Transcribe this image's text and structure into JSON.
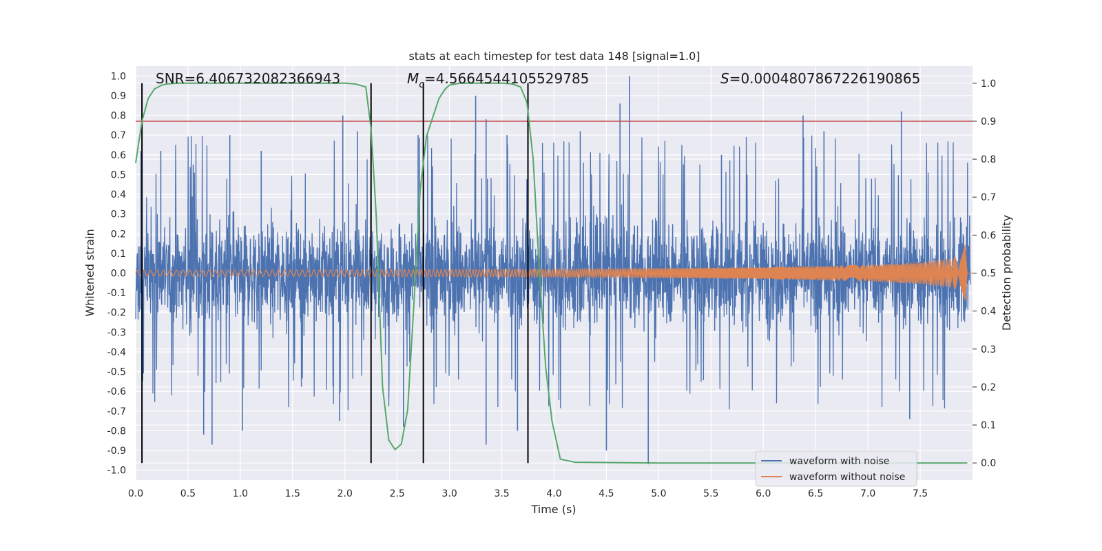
{
  "chart_data": {
    "type": "line",
    "title": "stats at each timestep for test data 148 [signal=1.0]",
    "xlabel": "Time (s)",
    "ylabel": "Whitened strain",
    "y2label": "Detection probability",
    "xlim": [
      0.0,
      8.0
    ],
    "ylim": [
      -1.05,
      1.05
    ],
    "y2lim": [
      -0.045,
      1.045
    ],
    "xticks": [
      "0.0",
      "0.5",
      "1.0",
      "1.5",
      "2.0",
      "2.5",
      "3.0",
      "3.5",
      "4.0",
      "4.5",
      "5.0",
      "5.5",
      "6.0",
      "6.5",
      "7.0",
      "7.5"
    ],
    "yticks": [
      "1.0",
      "0.9",
      "0.8",
      "0.7",
      "0.6",
      "0.5",
      "0.4",
      "0.3",
      "0.2",
      "0.1",
      "0.0",
      "-0.1",
      "-0.2",
      "-0.3",
      "-0.4",
      "-0.5",
      "-0.6",
      "-0.7",
      "-0.8",
      "-0.9",
      "-1.0"
    ],
    "y2ticks": [
      "1.0",
      "0.9",
      "0.8",
      "0.7",
      "0.6",
      "0.5",
      "0.4",
      "0.3",
      "0.2",
      "0.1",
      "0.0"
    ],
    "grid": true,
    "legend_position": "lower-right",
    "threshold": {
      "value": 0.9,
      "axis": "right",
      "color": "#c44e52"
    },
    "vertical_markers": [
      0.06,
      2.25,
      2.75,
      3.75
    ],
    "annotations": {
      "snr": "SNR=6.406732082366943",
      "mc_symbol": "M",
      "mc_sub": "c",
      "mc_value": "=4.5664544105529785",
      "s_symbol": "S",
      "s_value": "=0.0004807867226190865"
    },
    "series": [
      {
        "name": "waveform with noise",
        "color": "#4c72b0",
        "style": "noise",
        "typical_amplitude": 0.4,
        "spike_peaks": [
          {
            "x": 0.05,
            "y": 0.62
          },
          {
            "x": 0.24,
            "y": 0.62
          },
          {
            "x": 0.55,
            "y": 0.55
          },
          {
            "x": 0.9,
            "y": 0.7
          },
          {
            "x": 1.2,
            "y": 0.62
          },
          {
            "x": 1.98,
            "y": 0.8
          },
          {
            "x": 2.12,
            "y": 0.72
          },
          {
            "x": 2.7,
            "y": 0.7
          },
          {
            "x": 3.25,
            "y": 0.9
          },
          {
            "x": 3.35,
            "y": 0.78
          },
          {
            "x": 3.55,
            "y": 0.7
          },
          {
            "x": 4.25,
            "y": 0.72
          },
          {
            "x": 4.63,
            "y": 0.86
          },
          {
            "x": 4.72,
            "y": 1.0
          },
          {
            "x": 5.6,
            "y": 0.6
          },
          {
            "x": 6.38,
            "y": 0.8
          },
          {
            "x": 6.58,
            "y": 0.72
          },
          {
            "x": 7.32,
            "y": 0.82
          },
          {
            "x": 0.65,
            "y": -0.82
          },
          {
            "x": 0.73,
            "y": -0.87
          },
          {
            "x": 1.02,
            "y": -0.8
          },
          {
            "x": 1.95,
            "y": -0.75
          },
          {
            "x": 2.56,
            "y": -0.78
          },
          {
            "x": 3.35,
            "y": -0.87
          },
          {
            "x": 3.65,
            "y": -0.8
          },
          {
            "x": 4.5,
            "y": -0.9
          },
          {
            "x": 4.9,
            "y": -0.97
          },
          {
            "x": 7.4,
            "y": -0.74
          }
        ]
      },
      {
        "name": "waveform without noise",
        "color": "#dd8452",
        "style": "chirp",
        "envelope": [
          {
            "x": 0.0,
            "y": 0.015
          },
          {
            "x": 2.0,
            "y": 0.017
          },
          {
            "x": 4.0,
            "y": 0.02
          },
          {
            "x": 6.0,
            "y": 0.03
          },
          {
            "x": 7.0,
            "y": 0.042
          },
          {
            "x": 7.5,
            "y": 0.055
          },
          {
            "x": 7.8,
            "y": 0.075
          },
          {
            "x": 7.9,
            "y": 0.1
          },
          {
            "x": 7.93,
            "y": 0.15
          },
          {
            "x": 7.95,
            "y": 0.0
          },
          {
            "x": 8.0,
            "y": 0.0
          }
        ]
      },
      {
        "name": "detection probability",
        "color": "#55a868",
        "axis": "right",
        "x": [
          0.0,
          0.06,
          0.12,
          0.18,
          0.25,
          0.3,
          0.4,
          0.6,
          1.0,
          1.5,
          2.0,
          2.1,
          2.2,
          2.25,
          2.3,
          2.36,
          2.42,
          2.48,
          2.54,
          2.6,
          2.66,
          2.72,
          2.78,
          2.84,
          2.9,
          2.96,
          3.0,
          3.1,
          3.3,
          3.5,
          3.6,
          3.68,
          3.74,
          3.8,
          3.86,
          3.92,
          3.98,
          4.06,
          4.2,
          5.0,
          6.0,
          7.0,
          7.95
        ],
        "y": [
          0.79,
          0.9,
          0.96,
          0.985,
          0.995,
          0.998,
          1.0,
          1.0,
          1.0,
          1.0,
          1.0,
          0.998,
          0.99,
          0.88,
          0.65,
          0.2,
          0.06,
          0.035,
          0.05,
          0.14,
          0.42,
          0.72,
          0.86,
          0.91,
          0.96,
          0.985,
          0.995,
          1.0,
          1.0,
          1.0,
          0.998,
          0.99,
          0.95,
          0.8,
          0.5,
          0.25,
          0.11,
          0.01,
          0.002,
          0.0,
          0.0,
          0.0,
          0.0
        ]
      }
    ]
  }
}
